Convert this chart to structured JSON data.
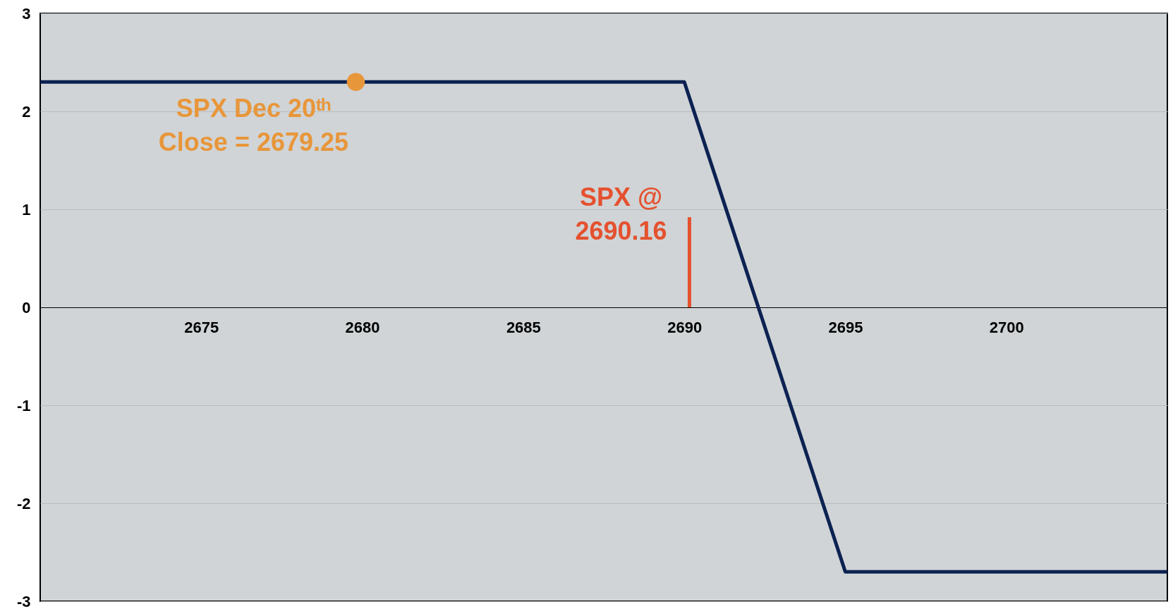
{
  "chart_data": {
    "type": "line",
    "xlim": [
      2670,
      2705
    ],
    "xticks": [
      2675,
      2680,
      2685,
      2690,
      2695,
      2700
    ],
    "ylim": [
      -3,
      3
    ],
    "yticks": [
      -3,
      -2,
      -1,
      0,
      1,
      2,
      3
    ],
    "grid": "y",
    "series": [
      {
        "color": "#0c2252",
        "x": [
          2670,
          2690,
          2695,
          2705
        ],
        "values": [
          2.3,
          2.3,
          -2.7,
          -2.7
        ]
      },
      {
        "type": "scatter",
        "color": "#e8963a",
        "x": [
          2679.8
        ],
        "values": [
          2.3
        ]
      },
      {
        "color": "#e5512f",
        "x": [
          2690.16,
          2690.16
        ],
        "values": [
          0,
          0.92
        ]
      }
    ],
    "annotations": [
      {
        "text": "SPX Dec 20ᵗʰ\nClose = 2679.25",
        "x": 2679.8,
        "y": 2.3
      },
      {
        "text": "SPX @\n2690.16",
        "x": 2690.16,
        "y": 0.92
      }
    ]
  }
}
